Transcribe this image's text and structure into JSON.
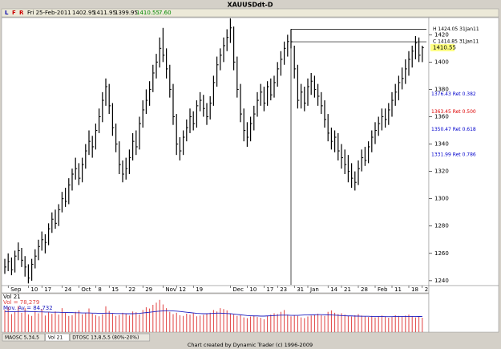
{
  "window_title": "XAUUSDdt-D",
  "toolbar": {
    "buttons": [
      "L",
      "F",
      "R"
    ],
    "date": "Fri 25-Feb-2011",
    "open": "1402.95",
    "high": "1411.95",
    "low": "1399.95",
    "close": "1410.55",
    "change": "7.60"
  },
  "chart_data": [
    {
      "type": "ohlc",
      "color": "#000000",
      "categories": [
        null,
        "Sep",
        null,
        null,
        null,
        null,
        null,
        "10",
        null,
        null,
        null,
        "17",
        null,
        null,
        null,
        null,
        null,
        "24",
        null,
        null,
        null,
        null,
        "Oct",
        null,
        null,
        null,
        null,
        "8",
        null,
        null,
        null,
        "15",
        null,
        null,
        null,
        null,
        "22",
        null,
        null,
        null,
        null,
        "29",
        null,
        null,
        null,
        null,
        null,
        "Nov",
        null,
        null,
        null,
        "12",
        null,
        null,
        null,
        null,
        "19",
        null,
        null,
        null,
        null,
        null,
        null,
        null,
        null,
        null,
        null,
        "Dec",
        null,
        null,
        null,
        null,
        "10",
        null,
        null,
        null,
        null,
        "17",
        null,
        null,
        null,
        "23",
        null,
        null,
        null,
        null,
        "31",
        null,
        null,
        null,
        "Jan",
        null,
        null,
        null,
        null,
        null,
        "14",
        null,
        null,
        null,
        "21",
        null,
        null,
        null,
        null,
        "28",
        null,
        null,
        null,
        null,
        "Feb",
        null,
        null,
        null,
        null,
        "11",
        null,
        null,
        null,
        null,
        "18",
        null,
        null,
        null,
        "2"
      ],
      "bars": [
        [
          1256,
          1245,
          1250
        ],
        [
          1260,
          1247,
          1254
        ],
        [
          1257,
          1244,
          1248
        ],
        [
          1262,
          1246,
          1258
        ],
        [
          1268,
          1255,
          1262
        ],
        [
          1264,
          1250,
          1255
        ],
        [
          1258,
          1243,
          1250
        ],
        [
          1252,
          1238,
          1242
        ],
        [
          1256,
          1240,
          1252
        ],
        [
          1263,
          1249,
          1258
        ],
        [
          1270,
          1255,
          1265
        ],
        [
          1276,
          1262,
          1270
        ],
        [
          1274,
          1260,
          1268
        ],
        [
          1282,
          1266,
          1278
        ],
        [
          1290,
          1275,
          1285
        ],
        [
          1292,
          1278,
          1282
        ],
        [
          1296,
          1280,
          1292
        ],
        [
          1305,
          1290,
          1300
        ],
        [
          1308,
          1294,
          1298
        ],
        [
          1315,
          1296,
          1310
        ],
        [
          1322,
          1306,
          1318
        ],
        [
          1330,
          1314,
          1322
        ],
        [
          1326,
          1310,
          1315
        ],
        [
          1330,
          1312,
          1325
        ],
        [
          1340,
          1322,
          1335
        ],
        [
          1350,
          1332,
          1342
        ],
        [
          1346,
          1330,
          1338
        ],
        [
          1355,
          1336,
          1350
        ],
        [
          1366,
          1348,
          1360
        ],
        [
          1378,
          1356,
          1372
        ],
        [
          1388,
          1368,
          1382
        ],
        [
          1384,
          1362,
          1368
        ],
        [
          1370,
          1346,
          1352
        ],
        [
          1355,
          1334,
          1340
        ],
        [
          1342,
          1318,
          1325
        ],
        [
          1328,
          1312,
          1318
        ],
        [
          1330,
          1314,
          1322
        ],
        [
          1336,
          1318,
          1330
        ],
        [
          1348,
          1328,
          1342
        ],
        [
          1350,
          1332,
          1338
        ],
        [
          1360,
          1336,
          1355
        ],
        [
          1372,
          1352,
          1365
        ],
        [
          1380,
          1362,
          1372
        ],
        [
          1386,
          1368,
          1380
        ],
        [
          1398,
          1378,
          1392
        ],
        [
          1406,
          1388,
          1400
        ],
        [
          1418,
          1396,
          1410
        ],
        [
          1425,
          1400,
          1405
        ],
        [
          1410,
          1388,
          1395
        ],
        [
          1398,
          1374,
          1380
        ],
        [
          1384,
          1354,
          1360
        ],
        [
          1362,
          1332,
          1340
        ],
        [
          1345,
          1328,
          1335
        ],
        [
          1350,
          1332,
          1345
        ],
        [
          1358,
          1342,
          1352
        ],
        [
          1366,
          1348,
          1360
        ],
        [
          1364,
          1350,
          1355
        ],
        [
          1372,
          1352,
          1368
        ],
        [
          1378,
          1364,
          1372
        ],
        [
          1376,
          1360,
          1366
        ],
        [
          1370,
          1354,
          1360
        ],
        [
          1375,
          1358,
          1370
        ],
        [
          1390,
          1368,
          1385
        ],
        [
          1404,
          1382,
          1398
        ],
        [
          1410,
          1394,
          1405
        ],
        [
          1418,
          1400,
          1412
        ],
        [
          1424,
          1408,
          1418
        ],
        [
          1432,
          1414,
          1425
        ],
        [
          1426,
          1394,
          1400
        ],
        [
          1404,
          1374,
          1380
        ],
        [
          1384,
          1356,
          1362
        ],
        [
          1366,
          1342,
          1350
        ],
        [
          1356,
          1338,
          1345
        ],
        [
          1360,
          1342,
          1355
        ],
        [
          1368,
          1350,
          1362
        ],
        [
          1378,
          1360,
          1372
        ],
        [
          1384,
          1368,
          1378
        ],
        [
          1382,
          1364,
          1370
        ],
        [
          1386,
          1368,
          1382
        ],
        [
          1388,
          1372,
          1376
        ],
        [
          1390,
          1374,
          1385
        ],
        [
          1400,
          1382,
          1395
        ],
        [
          1408,
          1390,
          1402
        ],
        [
          1415,
          1398,
          1410
        ],
        [
          1420,
          1404,
          1415
        ],
        [
          1424.05,
          1410,
          1414.85
        ],
        [
          1412,
          1388,
          1395
        ],
        [
          1398,
          1366,
          1372
        ],
        [
          1384,
          1366,
          1378
        ],
        [
          1382,
          1364,
          1370
        ],
        [
          1388,
          1368,
          1382
        ],
        [
          1392,
          1376,
          1386
        ],
        [
          1390,
          1374,
          1380
        ],
        [
          1384,
          1368,
          1375
        ],
        [
          1378,
          1362,
          1368
        ],
        [
          1372,
          1352,
          1358
        ],
        [
          1362,
          1342,
          1348
        ],
        [
          1352,
          1336,
          1342
        ],
        [
          1350,
          1334,
          1345
        ],
        [
          1348,
          1328,
          1335
        ],
        [
          1340,
          1322,
          1330
        ],
        [
          1336,
          1318,
          1325
        ],
        [
          1332,
          1312,
          1320
        ],
        [
          1326,
          1308,
          1315
        ],
        [
          1320,
          1306,
          1312
        ],
        [
          1328,
          1310,
          1322
        ],
        [
          1336,
          1320,
          1330
        ],
        [
          1338,
          1324,
          1328
        ],
        [
          1342,
          1326,
          1338
        ],
        [
          1350,
          1334,
          1345
        ],
        [
          1356,
          1340,
          1350
        ],
        [
          1360,
          1346,
          1355
        ],
        [
          1366,
          1350,
          1360
        ],
        [
          1366,
          1352,
          1358
        ],
        [
          1370,
          1354,
          1365
        ],
        [
          1378,
          1360,
          1372
        ],
        [
          1384,
          1368,
          1378
        ],
        [
          1390,
          1372,
          1385
        ],
        [
          1396,
          1380,
          1388
        ],
        [
          1402,
          1384,
          1395
        ],
        [
          1408,
          1390,
          1402
        ],
        [
          1412,
          1396,
          1408
        ],
        [
          1419,
          1402,
          1414
        ],
        [
          1418,
          1400,
          1405
        ],
        [
          1411.95,
          1399.95,
          1410.55
        ]
      ],
      "ylim": [
        1236.4,
        1432.5
      ],
      "yticks": [
        1240,
        1260,
        1280,
        1300,
        1320,
        1340,
        1360,
        1380,
        1400,
        1420
      ],
      "price_tag": 1410.55,
      "levels": [
        {
          "value": 1424.05,
          "label": "H 1424.05 31Jan11",
          "color": "#000000",
          "line": true
        },
        {
          "value": 1414.85,
          "label": "C 1414.85 31Jan11",
          "color": "#000000",
          "line": true
        },
        {
          "value": 1376.43,
          "label": "1376.43 Ret 0.382",
          "color": "#0000cc",
          "line": false
        },
        {
          "value": 1363.45,
          "label": "1363.45 Ret 0.500",
          "color": "#dd0000",
          "line": false
        },
        {
          "value": 1350.47,
          "label": "1350.47 Ret 0.618",
          "color": "#0000cc",
          "line": false
        },
        {
          "value": 1331.99,
          "label": "1331.99 Ret 0.786",
          "color": "#0000cc",
          "line": false
        }
      ]
    },
    {
      "type": "volume",
      "title": "Vol 21",
      "vol_label": "Vol = 78,279",
      "ma_label": "Mov. Av = 84,732",
      "ylim": [
        0,
        200000
      ],
      "series": [
        {
          "name": "Vol",
          "color": "#e04040",
          "values": [
            120000,
            135000,
            98000,
            110000,
            142000,
            105000,
            130000,
            96000,
            88000,
            115000,
            102000,
            125000,
            90000,
            108000,
            99000,
            112000,
            95000,
            130000,
            105000,
            88000,
            92000,
            110000,
            118000,
            96000,
            104000,
            128000,
            100000,
            92000,
            86000,
            97000,
            140000,
            115000,
            102000,
            88000,
            93000,
            105000,
            99000,
            90000,
            112000,
            108000,
            96000,
            120000,
            135000,
            128000,
            148000,
            160000,
            175000,
            150000,
            130000,
            110000,
            98000,
            105000,
            92000,
            88000,
            100000,
            95000,
            102000,
            86000,
            90000,
            94000,
            98000,
            105000,
            120000,
            112000,
            130000,
            125000,
            118000,
            102000,
            95000,
            88000,
            92000,
            80000,
            76000,
            85000,
            90000,
            82000,
            78000,
            70000,
            88000,
            95000,
            102000,
            98000,
            110000,
            120000,
            95000,
            86000,
            92000,
            88000,
            80000,
            76000,
            85000,
            90000,
            95000,
            100000,
            92000,
            88000,
            110000,
            118000,
            105000,
            98000,
            102000,
            95000,
            88000,
            85000,
            92000,
            98000,
            90000,
            86000,
            82000,
            88000,
            80000,
            84000,
            90000,
            86000,
            78000,
            82000,
            92000,
            88000,
            84000,
            90000,
            95000,
            86000,
            80000,
            85000,
            78279
          ]
        },
        {
          "name": "Mov. Av",
          "color": "#2020c0",
          "values": [
            112000,
            112000,
            111000,
            111000,
            112000,
            112000,
            113000,
            112000,
            111000,
            111000,
            110000,
            110000,
            109000,
            109000,
            108000,
            108000,
            108000,
            107000,
            107000,
            106000,
            106000,
            105000,
            105000,
            104000,
            104000,
            104000,
            103000,
            103000,
            102000,
            102000,
            103000,
            103000,
            102000,
            101000,
            101000,
            101000,
            100000,
            100000,
            100000,
            101000,
            102000,
            104000,
            106000,
            108000,
            110000,
            112000,
            114000,
            115000,
            116000,
            116000,
            115000,
            114000,
            112000,
            110000,
            108000,
            106000,
            104000,
            102000,
            101000,
            100000,
            100000,
            101000,
            102000,
            103000,
            103000,
            102000,
            101000,
            100000,
            98000,
            96000,
            94000,
            92000,
            90000,
            89000,
            88000,
            88000,
            87000,
            87000,
            88000,
            89000,
            90000,
            91000,
            92000,
            92000,
            92000,
            91000,
            91000,
            91000,
            92000,
            93000,
            93000,
            94000,
            94000,
            95000,
            95000,
            94000,
            94000,
            93000,
            92000,
            91000,
            90000,
            89000,
            88000,
            88000,
            87000,
            87000,
            86000,
            86000,
            86000,
            85000,
            85000,
            85000,
            85000,
            84000,
            84000,
            84000,
            85000,
            85000,
            85000,
            85000,
            85000,
            85000,
            84900,
            84800,
            84732
          ]
        }
      ]
    }
  ],
  "tabs": [
    "MAOSC 5,34,5",
    "Vol 21",
    "DTOSC 13,8,5,5 (80%-20%)"
  ],
  "footer": "Chart created by Dynamic Trader  (c)  1996-2009"
}
